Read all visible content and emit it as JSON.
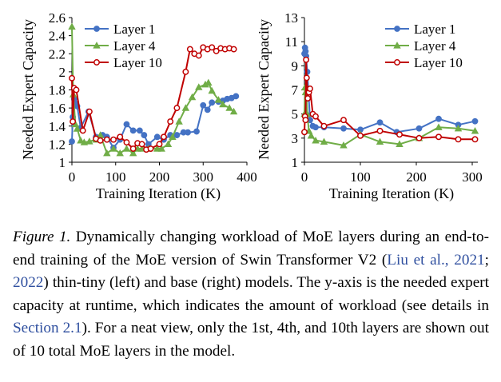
{
  "chart_data": [
    {
      "type": "line",
      "xlabel": "Training Iteration (K)",
      "ylabel": "Needed Expert Capacity",
      "xlim": [
        0,
        400
      ],
      "ylim": [
        1,
        2.6
      ],
      "xticks": [
        "0",
        "100",
        "200",
        "300",
        "400"
      ],
      "yticks": [
        "1",
        "1.2",
        "1.4",
        "1.6",
        "1.8",
        "2",
        "2.2",
        "2.4",
        "2.6"
      ],
      "grid": false,
      "legend_position": "top-left",
      "series": [
        {
          "name": "Layer 1",
          "color": "#4472c4",
          "marker": "circle",
          "x": [
            0,
            2,
            5,
            8,
            12,
            20,
            38,
            55,
            70,
            80,
            95,
            110,
            125,
            140,
            155,
            165,
            175,
            195,
            210,
            225,
            240,
            255,
            265,
            285,
            300,
            310,
            320,
            335,
            345,
            355,
            365,
            375
          ],
          "y": [
            1.23,
            1.5,
            1.7,
            1.65,
            1.62,
            1.38,
            1.56,
            1.28,
            1.3,
            1.28,
            1.16,
            1.25,
            1.42,
            1.35,
            1.35,
            1.3,
            1.2,
            1.28,
            1.25,
            1.3,
            1.3,
            1.33,
            1.33,
            1.34,
            1.63,
            1.58,
            1.66,
            1.67,
            1.68,
            1.7,
            1.71,
            1.73
          ]
        },
        {
          "name": "Layer 4",
          "color": "#70ad47",
          "marker": "triangle",
          "x": [
            0,
            3,
            8,
            12,
            20,
            28,
            40,
            55,
            65,
            80,
            95,
            110,
            125,
            140,
            150,
            160,
            175,
            195,
            205,
            220,
            230,
            245,
            260,
            275,
            290,
            305,
            312,
            320,
            335,
            345,
            360,
            370
          ],
          "y": [
            2.5,
            1.75,
            1.42,
            1.37,
            1.24,
            1.22,
            1.23,
            1.25,
            1.3,
            1.1,
            1.15,
            1.1,
            1.15,
            1.1,
            1.15,
            1.15,
            1.15,
            1.15,
            1.15,
            1.2,
            1.28,
            1.45,
            1.6,
            1.72,
            1.83,
            1.86,
            1.88,
            1.79,
            1.69,
            1.64,
            1.6,
            1.56
          ]
        },
        {
          "name": "Layer 10",
          "color": "#c00000",
          "marker": "circle-open",
          "x": [
            0,
            2,
            5,
            10,
            25,
            40,
            55,
            65,
            80,
            95,
            110,
            125,
            140,
            150,
            160,
            170,
            180,
            200,
            210,
            225,
            240,
            260,
            270,
            280,
            290,
            300,
            310,
            320,
            330,
            340,
            350,
            360,
            370
          ],
          "y": [
            1.93,
            1.45,
            1.82,
            1.8,
            1.35,
            1.56,
            1.26,
            1.24,
            1.25,
            1.25,
            1.28,
            1.22,
            1.15,
            1.21,
            1.2,
            1.14,
            1.15,
            1.2,
            1.28,
            1.45,
            1.6,
            2.0,
            2.25,
            2.2,
            2.18,
            2.27,
            2.25,
            2.27,
            2.23,
            2.26,
            2.25,
            2.26,
            2.25
          ]
        }
      ]
    },
    {
      "type": "line",
      "xlabel": "Training Iteration (K)",
      "ylabel": "Needed Expert Capacity",
      "xlim": [
        0,
        310
      ],
      "ylim": [
        1,
        13
      ],
      "xticks": [
        "0",
        "100",
        "200",
        "300"
      ],
      "yticks": [
        "1",
        "3",
        "5",
        "7",
        "9",
        "11",
        "13"
      ],
      "grid": false,
      "legend_position": "top-right",
      "series": [
        {
          "name": "Layer 1",
          "color": "#4472c4",
          "marker": "circle",
          "x": [
            0,
            1,
            2,
            3,
            5,
            7,
            10,
            15,
            20,
            35,
            70,
            100,
            135,
            165,
            205,
            240,
            275,
            305
          ],
          "y": [
            10.0,
            10.5,
            10.2,
            9.8,
            8.5,
            7.0,
            4.5,
            4.0,
            3.9,
            3.9,
            3.8,
            3.7,
            4.3,
            3.5,
            3.8,
            4.6,
            4.1,
            4.4
          ]
        },
        {
          "name": "Layer 4",
          "color": "#70ad47",
          "marker": "triangle",
          "x": [
            0,
            1,
            2,
            3,
            5,
            8,
            12,
            20,
            35,
            70,
            100,
            135,
            170,
            205,
            240,
            275,
            305
          ],
          "y": [
            5.0,
            7.2,
            6.8,
            7.3,
            5.0,
            3.6,
            3.2,
            2.8,
            2.7,
            2.4,
            3.3,
            2.7,
            2.5,
            3.0,
            3.9,
            3.8,
            3.6
          ]
        },
        {
          "name": "Layer 10",
          "color": "#c00000",
          "marker": "circle-open",
          "x": [
            0,
            1,
            2,
            3,
            4,
            6,
            8,
            10,
            15,
            20,
            35,
            70,
            100,
            135,
            170,
            205,
            240,
            275,
            305
          ],
          "y": [
            3.5,
            4.8,
            4.5,
            9.5,
            8.0,
            6.3,
            6.8,
            7.1,
            5.0,
            4.8,
            4.0,
            4.5,
            3.2,
            3.6,
            3.3,
            3.0,
            3.1,
            2.9,
            2.9
          ]
        }
      ]
    }
  ],
  "caption": {
    "figure_label": "Figure 1.",
    "text_1": " Dynamically changing workload of MoE layers during an end-to-end training of the MoE version of Swin Transformer V2 (",
    "cite_1": "Liu et al., 2021",
    "text_2": "; ",
    "cite_2": "2022",
    "text_3": ") thin-tiny (left) and base (right) models.  The y-axis is the needed expert capacity at runtime, which indicates the amount of workload (see details in ",
    "cite_3": "Section 2.1",
    "text_4": "). For a neat view, only the 1st, 4th, and 10th layers are shown out of 10 total MoE layers in the model."
  }
}
